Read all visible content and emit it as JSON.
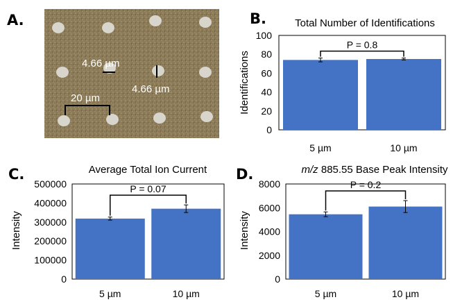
{
  "panels": {
    "A": {
      "letter": "A.",
      "scale_labels": [
        "4.66 µm",
        "4.66 µm",
        "20 µm"
      ]
    }
  },
  "chart_data": [
    {
      "letter": "B.",
      "type": "bar",
      "title": "Total Number of Identifications",
      "title_prefix": "",
      "ylabel": "Identifications",
      "xlabel": "",
      "categories": [
        "5 µm",
        "10 µm"
      ],
      "values": [
        74,
        75
      ],
      "errors": [
        2,
        1
      ],
      "ylim": [
        0,
        100
      ],
      "yticks": [
        "0",
        "20",
        "40",
        "60",
        "80",
        "100"
      ],
      "annotation": "P = 0.8",
      "bar_color": "#4472c4",
      "grid": false
    },
    {
      "letter": "C.",
      "type": "bar",
      "title": "Average Total Ion Current",
      "title_prefix": "",
      "ylabel": "Intensity",
      "xlabel": "",
      "categories": [
        "5 µm",
        "10 µm"
      ],
      "values": [
        318000,
        370000
      ],
      "errors": [
        8000,
        20000
      ],
      "ylim": [
        0,
        500000
      ],
      "yticks": [
        "0",
        "100000",
        "200000",
        "300000",
        "400000",
        "500000"
      ],
      "annotation": "P = 0.07",
      "bar_color": "#4472c4",
      "grid": false
    },
    {
      "letter": "D.",
      "type": "bar",
      "title": "885.55 Base Peak Intensity",
      "title_prefix": "m/z",
      "ylabel": "Intensity",
      "xlabel": "",
      "categories": [
        "5 µm",
        "10 µm"
      ],
      "values": [
        5450,
        6100
      ],
      "errors": [
        200,
        500
      ],
      "ylim": [
        0,
        8000
      ],
      "yticks": [
        "0",
        "2000",
        "4000",
        "6000",
        "8000"
      ],
      "annotation": "P = 0.2",
      "bar_color": "#4472c4",
      "grid": false
    }
  ]
}
